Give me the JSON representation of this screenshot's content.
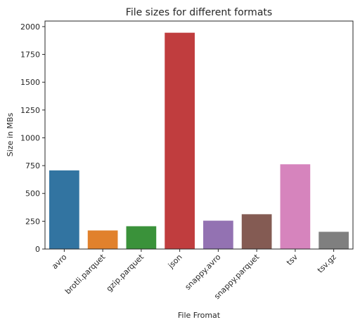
{
  "chart_data": {
    "type": "bar",
    "title": "File sizes for different formats",
    "xlabel": "File Fromat",
    "ylabel": "Size in MBs",
    "categories": [
      "avro",
      "brotli.parquet",
      "gzip.parquet",
      "json",
      "snappy.avro",
      "snappy.parquet",
      "tsv",
      "tsv.gz"
    ],
    "values": [
      707,
      167,
      205,
      1945,
      255,
      313,
      762,
      155
    ],
    "colors": [
      "#3274a1",
      "#e1812c",
      "#3a923a",
      "#c03d3e",
      "#9372b2",
      "#845b53",
      "#d684bd",
      "#7f7f7f"
    ],
    "yticks": [
      "0",
      "250",
      "500",
      "750",
      "1000",
      "1250",
      "1500",
      "1750",
      "2000"
    ],
    "ylim": [
      0,
      2050
    ],
    "grid": false,
    "legend": "none"
  }
}
